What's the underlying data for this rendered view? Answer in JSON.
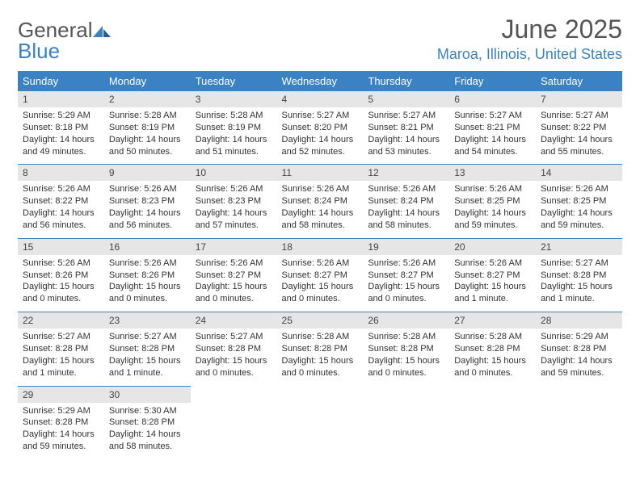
{
  "brand": {
    "part1": "General",
    "part2": "Blue"
  },
  "title": "June 2025",
  "location": "Maroa, Illinois, United States",
  "colors": {
    "accent": "#3b82c4",
    "header_text": "#555555",
    "daynum_bg": "#e6e6e6",
    "body_text": "#333333",
    "background": "#ffffff"
  },
  "typography": {
    "title_fontsize": 32,
    "location_fontsize": 18,
    "dayhead_fontsize": 13,
    "cell_fontsize": 11
  },
  "dayNames": [
    "Sunday",
    "Monday",
    "Tuesday",
    "Wednesday",
    "Thursday",
    "Friday",
    "Saturday"
  ],
  "weeks": [
    {
      "nums": [
        "1",
        "2",
        "3",
        "4",
        "5",
        "6",
        "7"
      ],
      "cells": [
        {
          "sunrise": "Sunrise: 5:29 AM",
          "sunset": "Sunset: 8:18 PM",
          "day1": "Daylight: 14 hours",
          "day2": "and 49 minutes."
        },
        {
          "sunrise": "Sunrise: 5:28 AM",
          "sunset": "Sunset: 8:19 PM",
          "day1": "Daylight: 14 hours",
          "day2": "and 50 minutes."
        },
        {
          "sunrise": "Sunrise: 5:28 AM",
          "sunset": "Sunset: 8:19 PM",
          "day1": "Daylight: 14 hours",
          "day2": "and 51 minutes."
        },
        {
          "sunrise": "Sunrise: 5:27 AM",
          "sunset": "Sunset: 8:20 PM",
          "day1": "Daylight: 14 hours",
          "day2": "and 52 minutes."
        },
        {
          "sunrise": "Sunrise: 5:27 AM",
          "sunset": "Sunset: 8:21 PM",
          "day1": "Daylight: 14 hours",
          "day2": "and 53 minutes."
        },
        {
          "sunrise": "Sunrise: 5:27 AM",
          "sunset": "Sunset: 8:21 PM",
          "day1": "Daylight: 14 hours",
          "day2": "and 54 minutes."
        },
        {
          "sunrise": "Sunrise: 5:27 AM",
          "sunset": "Sunset: 8:22 PM",
          "day1": "Daylight: 14 hours",
          "day2": "and 55 minutes."
        }
      ]
    },
    {
      "nums": [
        "8",
        "9",
        "10",
        "11",
        "12",
        "13",
        "14"
      ],
      "cells": [
        {
          "sunrise": "Sunrise: 5:26 AM",
          "sunset": "Sunset: 8:22 PM",
          "day1": "Daylight: 14 hours",
          "day2": "and 56 minutes."
        },
        {
          "sunrise": "Sunrise: 5:26 AM",
          "sunset": "Sunset: 8:23 PM",
          "day1": "Daylight: 14 hours",
          "day2": "and 56 minutes."
        },
        {
          "sunrise": "Sunrise: 5:26 AM",
          "sunset": "Sunset: 8:23 PM",
          "day1": "Daylight: 14 hours",
          "day2": "and 57 minutes."
        },
        {
          "sunrise": "Sunrise: 5:26 AM",
          "sunset": "Sunset: 8:24 PM",
          "day1": "Daylight: 14 hours",
          "day2": "and 58 minutes."
        },
        {
          "sunrise": "Sunrise: 5:26 AM",
          "sunset": "Sunset: 8:24 PM",
          "day1": "Daylight: 14 hours",
          "day2": "and 58 minutes."
        },
        {
          "sunrise": "Sunrise: 5:26 AM",
          "sunset": "Sunset: 8:25 PM",
          "day1": "Daylight: 14 hours",
          "day2": "and 59 minutes."
        },
        {
          "sunrise": "Sunrise: 5:26 AM",
          "sunset": "Sunset: 8:25 PM",
          "day1": "Daylight: 14 hours",
          "day2": "and 59 minutes."
        }
      ]
    },
    {
      "nums": [
        "15",
        "16",
        "17",
        "18",
        "19",
        "20",
        "21"
      ],
      "cells": [
        {
          "sunrise": "Sunrise: 5:26 AM",
          "sunset": "Sunset: 8:26 PM",
          "day1": "Daylight: 15 hours",
          "day2": "and 0 minutes."
        },
        {
          "sunrise": "Sunrise: 5:26 AM",
          "sunset": "Sunset: 8:26 PM",
          "day1": "Daylight: 15 hours",
          "day2": "and 0 minutes."
        },
        {
          "sunrise": "Sunrise: 5:26 AM",
          "sunset": "Sunset: 8:27 PM",
          "day1": "Daylight: 15 hours",
          "day2": "and 0 minutes."
        },
        {
          "sunrise": "Sunrise: 5:26 AM",
          "sunset": "Sunset: 8:27 PM",
          "day1": "Daylight: 15 hours",
          "day2": "and 0 minutes."
        },
        {
          "sunrise": "Sunrise: 5:26 AM",
          "sunset": "Sunset: 8:27 PM",
          "day1": "Daylight: 15 hours",
          "day2": "and 0 minutes."
        },
        {
          "sunrise": "Sunrise: 5:26 AM",
          "sunset": "Sunset: 8:27 PM",
          "day1": "Daylight: 15 hours",
          "day2": "and 1 minute."
        },
        {
          "sunrise": "Sunrise: 5:27 AM",
          "sunset": "Sunset: 8:28 PM",
          "day1": "Daylight: 15 hours",
          "day2": "and 1 minute."
        }
      ]
    },
    {
      "nums": [
        "22",
        "23",
        "24",
        "25",
        "26",
        "27",
        "28"
      ],
      "cells": [
        {
          "sunrise": "Sunrise: 5:27 AM",
          "sunset": "Sunset: 8:28 PM",
          "day1": "Daylight: 15 hours",
          "day2": "and 1 minute."
        },
        {
          "sunrise": "Sunrise: 5:27 AM",
          "sunset": "Sunset: 8:28 PM",
          "day1": "Daylight: 15 hours",
          "day2": "and 1 minute."
        },
        {
          "sunrise": "Sunrise: 5:27 AM",
          "sunset": "Sunset: 8:28 PM",
          "day1": "Daylight: 15 hours",
          "day2": "and 0 minutes."
        },
        {
          "sunrise": "Sunrise: 5:28 AM",
          "sunset": "Sunset: 8:28 PM",
          "day1": "Daylight: 15 hours",
          "day2": "and 0 minutes."
        },
        {
          "sunrise": "Sunrise: 5:28 AM",
          "sunset": "Sunset: 8:28 PM",
          "day1": "Daylight: 15 hours",
          "day2": "and 0 minutes."
        },
        {
          "sunrise": "Sunrise: 5:28 AM",
          "sunset": "Sunset: 8:28 PM",
          "day1": "Daylight: 15 hours",
          "day2": "and 0 minutes."
        },
        {
          "sunrise": "Sunrise: 5:29 AM",
          "sunset": "Sunset: 8:28 PM",
          "day1": "Daylight: 14 hours",
          "day2": "and 59 minutes."
        }
      ]
    },
    {
      "nums": [
        "29",
        "30",
        "",
        "",
        "",
        "",
        ""
      ],
      "cells": [
        {
          "sunrise": "Sunrise: 5:29 AM",
          "sunset": "Sunset: 8:28 PM",
          "day1": "Daylight: 14 hours",
          "day2": "and 59 minutes."
        },
        {
          "sunrise": "Sunrise: 5:30 AM",
          "sunset": "Sunset: 8:28 PM",
          "day1": "Daylight: 14 hours",
          "day2": "and 58 minutes."
        },
        null,
        null,
        null,
        null,
        null
      ]
    }
  ]
}
